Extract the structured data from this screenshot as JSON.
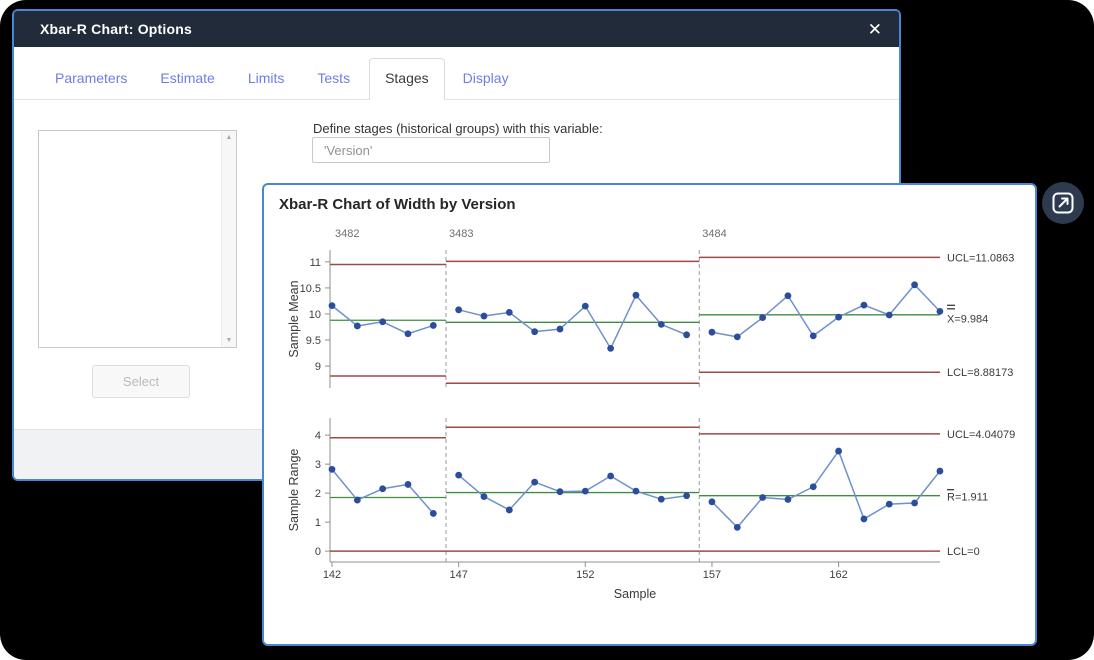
{
  "ui_colors": {
    "window_border": "#4a86d8",
    "titlebar_bg": "#212b39",
    "tab_text": "#6f7de9",
    "footer_bg": "#f1f2f3",
    "expand_button_bg": "#2e3b4e"
  },
  "dialog": {
    "title": "Xbar-R Chart: Options",
    "close_icon": "✕",
    "tabs": [
      {
        "label": "Parameters",
        "active": false
      },
      {
        "label": "Estimate",
        "active": false
      },
      {
        "label": "Limits",
        "active": false
      },
      {
        "label": "Tests",
        "active": false
      },
      {
        "label": "Stages",
        "active": true
      },
      {
        "label": "Display",
        "active": false
      }
    ],
    "stages_tab": {
      "variable_label": "Define stages (historical groups) with this variable:",
      "variable_value": "'Version'",
      "select_button": "Select",
      "scrollbar_up_icon": "▲",
      "scrollbar_down_icon": "▼"
    }
  },
  "chart_window": {
    "expand_icon": "open-in-new-window"
  },
  "chart_data": {
    "type": "line",
    "title": "Xbar-R Chart of Width by Version",
    "xlabel": "Sample",
    "x_start": 142,
    "x_range": [
      142,
      166
    ],
    "x_tick_labels": [
      142,
      147,
      152,
      157,
      162
    ],
    "grid": "off",
    "panels": [
      {
        "name": "Sample Mean",
        "ticks": [
          9,
          9.5,
          10,
          10.5,
          11
        ],
        "right_labels": {
          "ucl": "UCL=11.0863",
          "center": "X=9.984",
          "center_symbol": "x-double-bar",
          "lcl": "LCL=8.88173"
        }
      },
      {
        "name": "Sample Range",
        "ticks": [
          0,
          1,
          2,
          3,
          4
        ],
        "right_labels": {
          "ucl": "UCL=4.04079",
          "center": "R=1.911",
          "center_symbol": "r-bar",
          "lcl": "LCL=0"
        }
      }
    ],
    "stages": [
      {
        "label": "3482",
        "mean": {
          "values": [
            10.16,
            9.77,
            9.85,
            9.62,
            9.78
          ],
          "ucl": 10.95,
          "cl": 9.88,
          "lcl": 8.81
        },
        "range": {
          "values": [
            2.82,
            1.76,
            2.15,
            2.3,
            1.3
          ],
          "ucl": 3.91,
          "cl": 1.85,
          "lcl": 0
        }
      },
      {
        "label": "3483",
        "mean": {
          "values": [
            10.08,
            9.96,
            10.03,
            9.66,
            9.71,
            10.15,
            9.34,
            10.36,
            9.8,
            9.6
          ],
          "ucl": 11.01,
          "cl": 9.84,
          "lcl": 8.67
        },
        "range": {
          "values": [
            2.62,
            1.88,
            1.42,
            2.38,
            2.05,
            2.07,
            2.59,
            2.07,
            1.79,
            1.91
          ],
          "ucl": 4.27,
          "cl": 2.02,
          "lcl": 0
        }
      },
      {
        "label": "3484",
        "mean": {
          "values": [
            9.65,
            9.56,
            9.93,
            10.35,
            9.58,
            9.94,
            10.17,
            9.98,
            10.56,
            10.05
          ],
          "ucl": 11.0863,
          "cl": 9.984,
          "lcl": 8.88173
        },
        "range": {
          "values": [
            1.7,
            0.82,
            1.85,
            1.78,
            2.22,
            3.45,
            1.11,
            1.62,
            1.66,
            2.76
          ],
          "ucl": 4.04079,
          "cl": 1.911,
          "lcl": 0
        }
      }
    ],
    "colors": {
      "limit_line": "#9e4a44",
      "center_line": "#3e8e41",
      "data_line": "#7090cc",
      "marker": "#2c4d9c",
      "stage_divider": "#9a9a9a",
      "axis": "#8f8f8f",
      "tick_text": "#3f3f3f",
      "stage_text": "#6f6f6f",
      "label_text": "#3a3a3a"
    }
  }
}
